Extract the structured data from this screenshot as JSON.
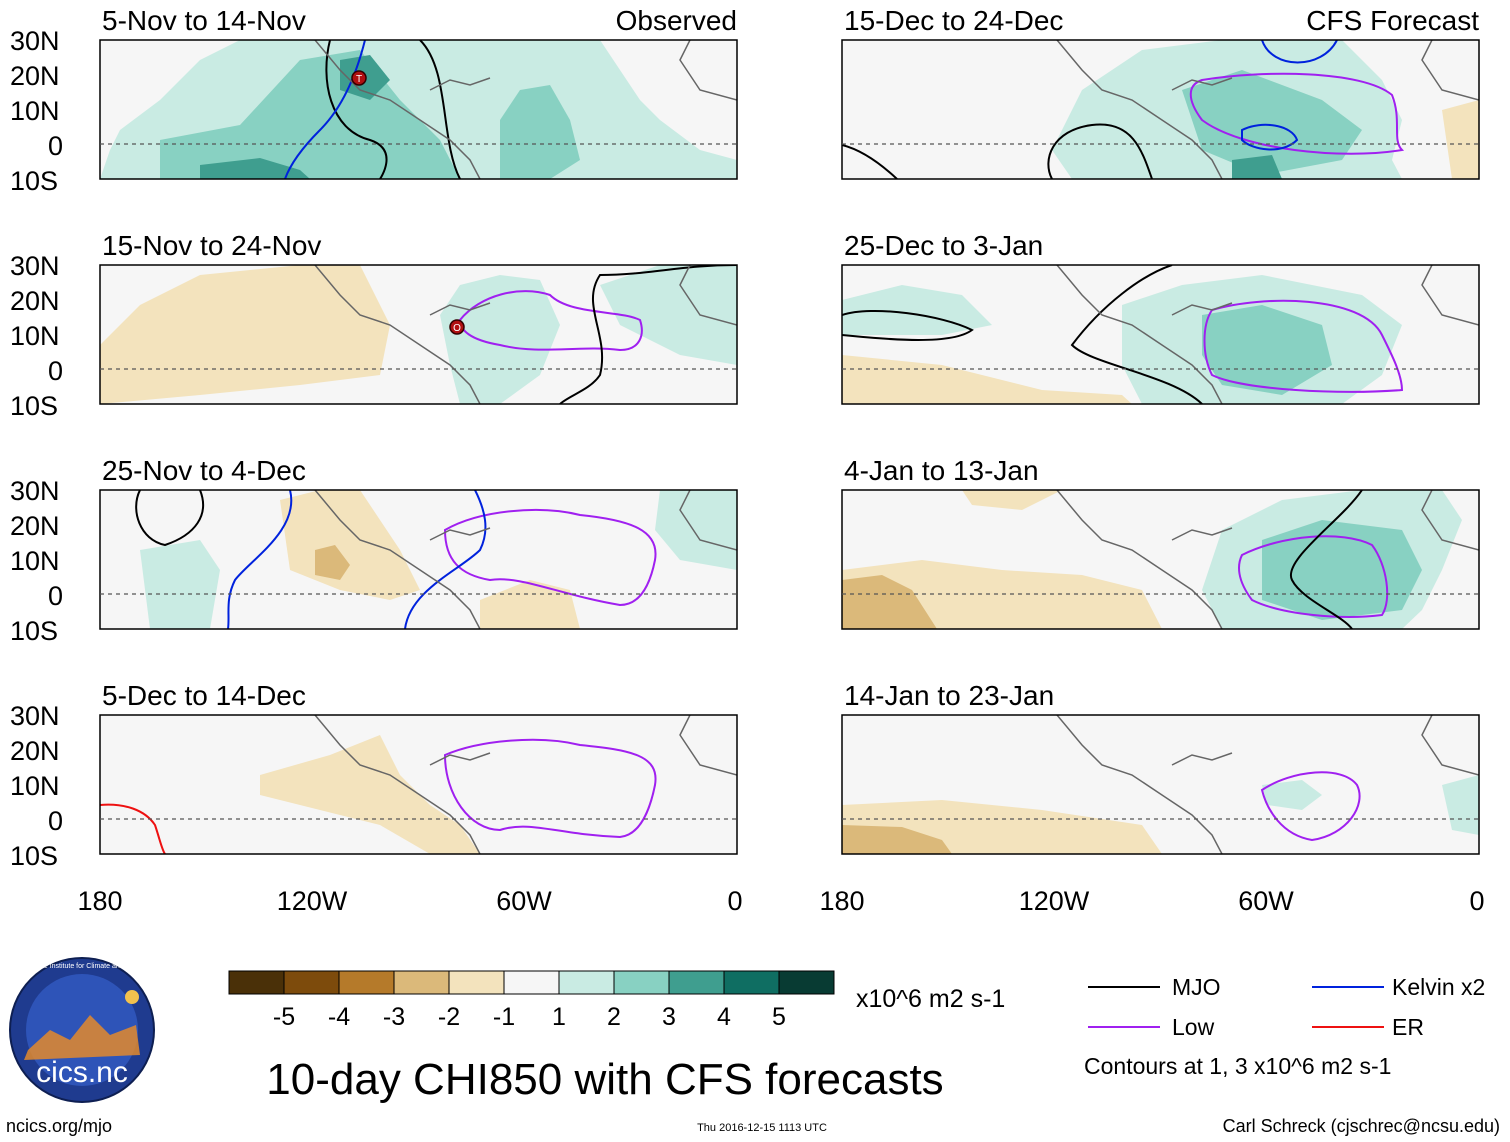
{
  "figure": {
    "main_title": "10-day CHI850 with CFS forecasts",
    "footer_left": "ncics.org/mjo",
    "footer_center": "Thu 2016-12-15 1113 UTC",
    "footer_right": "Carl Schreck (cjschrec@ncsu.edu)",
    "logo_text": "cics.nc",
    "logo_ring_text": "Cooperative Institute for Climate and Satellites"
  },
  "axes": {
    "lat_labels": [
      "30N",
      "20N",
      "10N",
      "0",
      "10S"
    ],
    "lon_labels": [
      "180",
      "120W",
      "60W",
      "0"
    ]
  },
  "panels": [
    {
      "title": "5-Nov to 14-Nov",
      "tag": "Observed"
    },
    {
      "title": "15-Dec to 24-Dec",
      "tag": "CFS Forecast"
    },
    {
      "title": "15-Nov to 24-Nov",
      "tag": ""
    },
    {
      "title": "25-Dec to 3-Jan",
      "tag": ""
    },
    {
      "title": "25-Nov to 4-Dec",
      "tag": ""
    },
    {
      "title": "4-Jan to 13-Jan",
      "tag": ""
    },
    {
      "title": "5-Dec to 14-Dec",
      "tag": ""
    },
    {
      "title": "14-Jan to 23-Jan",
      "tag": ""
    }
  ],
  "storm_markers": [
    {
      "panel": 0,
      "label": "T"
    },
    {
      "panel": 2,
      "label": "O"
    }
  ],
  "colorbar": {
    "tick_labels": [
      "-5",
      "-4",
      "-3",
      "-2",
      "-1",
      "1",
      "2",
      "3",
      "4",
      "5"
    ],
    "units": "x10^6 m2 s-1",
    "colors": [
      "#4a3008",
      "#7d4b0c",
      "#b57a2a",
      "#dbb97a",
      "#f3e3bd",
      "#f6f6f6",
      "#c9ebe3",
      "#88d1c2",
      "#3f9e8f",
      "#0f6e62",
      "#083b33"
    ]
  },
  "legend": {
    "items": [
      {
        "label": "MJO",
        "color": "#000000"
      },
      {
        "label": "Kelvin x2",
        "color": "#0022dd"
      },
      {
        "label": "Low",
        "color": "#a020f0"
      },
      {
        "label": "ER",
        "color": "#ee1111"
      }
    ],
    "note": "Contours at 1, 3 x10^6 m2 s-1"
  }
}
